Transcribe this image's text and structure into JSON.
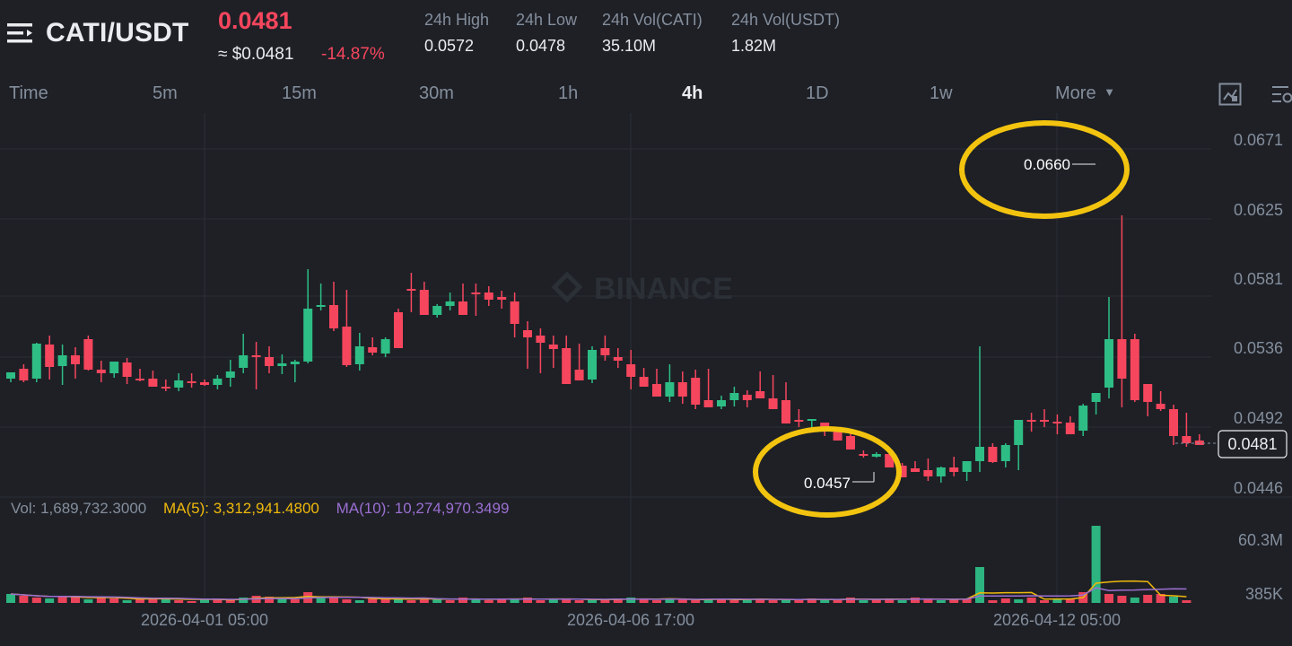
{
  "header": {
    "pair": "CATI/USDT",
    "last_price": "0.0481",
    "usd_price": "≈ $0.0481",
    "change": "-14.87%",
    "stats": [
      {
        "label": "24h High",
        "value": "0.0572"
      },
      {
        "label": "24h Low",
        "value": "0.0478"
      },
      {
        "label": "24h Vol(CATI)",
        "value": "35.10M"
      },
      {
        "label": "24h Vol(USDT)",
        "value": "1.82M"
      }
    ]
  },
  "tabs": {
    "items": [
      "Time",
      "5m",
      "15m",
      "30m",
      "1h",
      "4h",
      "1D",
      "1w",
      "More"
    ],
    "active": "4h"
  },
  "chart": {
    "watermark": "BINANCE",
    "price_ticks": [
      "0.0671",
      "0.0625",
      "0.0581",
      "0.0536",
      "0.0492",
      "0.0446"
    ],
    "current_price": "0.0481",
    "high_label": "0.0660",
    "low_label": "0.0457",
    "volume_ticks": [
      "60.3M",
      "385K"
    ],
    "time_ticks": [
      "2026-04-01 05:00",
      "2026-04-06 17:00",
      "2026-04-12 05:00"
    ]
  },
  "volume_legend": {
    "vol": "Vol: 1,689,732.3000",
    "ma5": "MA(5): 3,312,941.4800",
    "ma10": "MA(10): 10,274,970.3499"
  },
  "colors": {
    "up": "#2ebd85",
    "down": "#f6465d",
    "ma5": "#f0b90b",
    "ma10": "#9b6fd1",
    "highlight": "#f3c40f"
  }
}
